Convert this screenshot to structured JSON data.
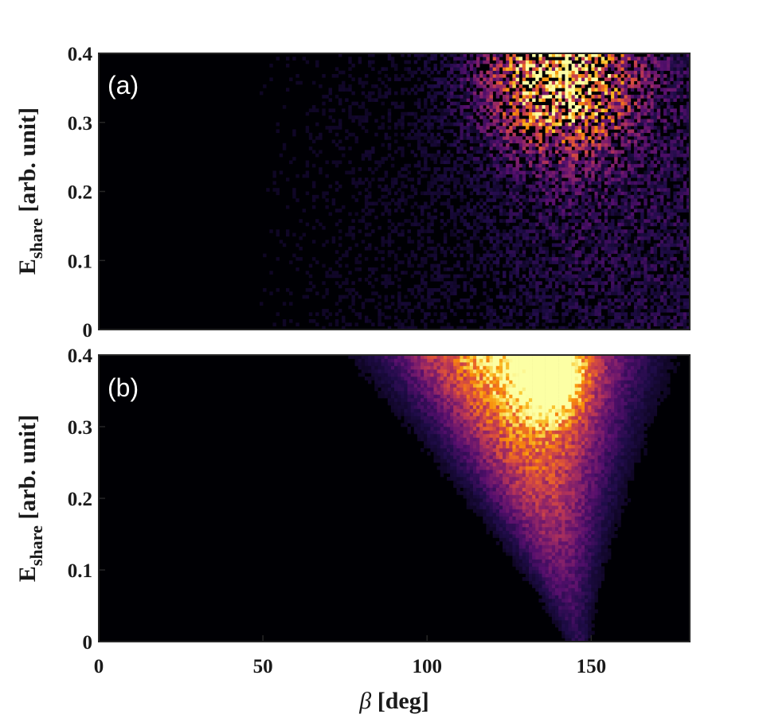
{
  "chart_data": [
    {
      "type": "heatmap",
      "panel_label": "(a)",
      "colormap": "inferno",
      "background_color": "#000004",
      "x_range": [
        0,
        180
      ],
      "y_range": [
        0,
        0.4
      ],
      "x_bin_count": 180,
      "y_bin_count": 80,
      "xticks": [
        "0",
        "50",
        "100",
        "150"
      ],
      "xtick_values": [
        0,
        50,
        100,
        150
      ],
      "yticks": [
        "0",
        "0.1",
        "0.2",
        "0.3",
        "0.4"
      ],
      "ytick_values": [
        0,
        0.1,
        0.2,
        0.3,
        0.4
      ],
      "ylabel_main": "E",
      "ylabel_sub": "share",
      "ylabel_unit": " [arb. unit]",
      "xlabel": "",
      "description": "Noisy distribution; intensity rises toward high beta, brightest cluster near beta ~135-150 deg at E_share ~0.3-0.4",
      "peak": {
        "x": 140,
        "y": 0.36
      }
    },
    {
      "type": "heatmap",
      "panel_label": "(b)",
      "colormap": "inferno",
      "background_color": "#000004",
      "x_range": [
        0,
        180
      ],
      "y_range": [
        0,
        0.4
      ],
      "x_bin_count": 180,
      "y_bin_count": 80,
      "xticks": [
        "0",
        "50",
        "100",
        "150"
      ],
      "xtick_values": [
        0,
        50,
        100,
        150
      ],
      "yticks": [
        "0",
        "0.1",
        "0.2",
        "0.3",
        "0.4"
      ],
      "ytick_values": [
        0,
        0.1,
        0.2,
        0.3,
        0.4
      ],
      "ylabel_main": "E",
      "ylabel_sub": "share",
      "ylabel_unit": " [arb. unit]",
      "xlabel_symbol": "β",
      "xlabel_unit": " [deg]",
      "description": "Smooth V-shaped distribution converging to beta ~145 deg at low E_share, widening and brightest near beta ~135-145 deg at E_share ~0.4",
      "peak": {
        "x": 138,
        "y": 0.38
      }
    }
  ]
}
